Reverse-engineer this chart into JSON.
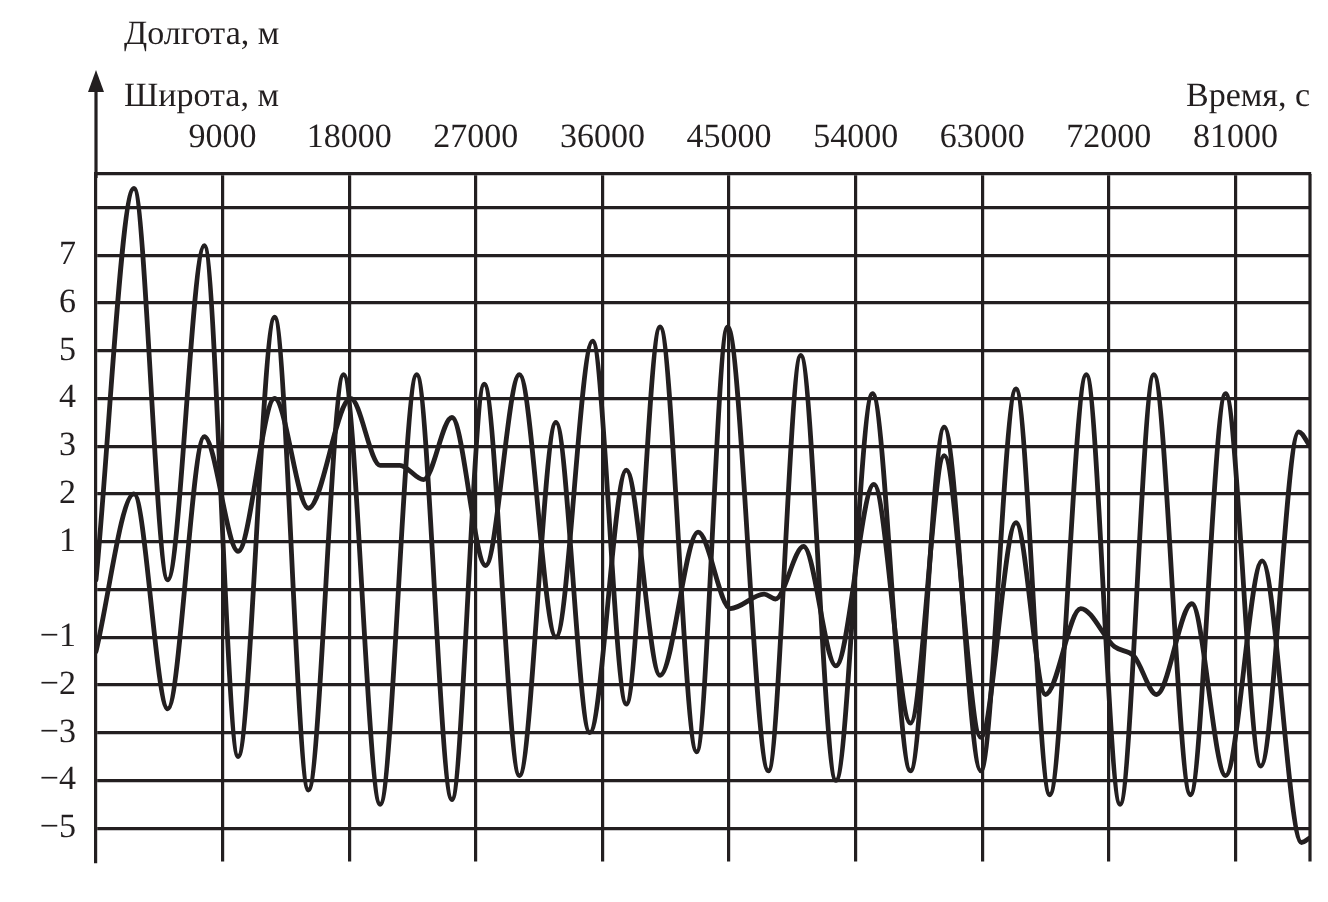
{
  "chart_data": {
    "type": "line",
    "xlabel": "Время, с",
    "ylabel": "Долгота, м\nШирота, м",
    "xlim": [
      0,
      86300
    ],
    "xticks": [
      9000,
      18000,
      27000,
      36000,
      45000,
      54000,
      63000,
      72000,
      81000
    ],
    "ylim": [
      -5.7,
      8.7
    ],
    "yticks": [
      {
        "value": 8,
        "label": null
      },
      7,
      6,
      5,
      4,
      3,
      2,
      1,
      {
        "value": 0,
        "label": null
      },
      -1,
      -2,
      -3,
      -4,
      -5
    ],
    "grid": true,
    "legend": false,
    "marker": "none",
    "line_style": "solid",
    "series": [
      {
        "color": "#231f20",
        "x": [
          0,
          2700,
          5100,
          7700,
          10100,
          12700,
          15100,
          17600,
          20200,
          22800,
          25300,
          27600,
          30100,
          32700,
          35100,
          37700,
          40100,
          42800,
          45100,
          47500,
          48300,
          50300,
          52600,
          55300,
          57900,
          60300,
          62900,
          65400,
          67500,
          70000,
          72400,
          73800,
          75400,
          77900,
          80300,
          82900,
          85700,
          86300
        ],
        "values": [
          0.2,
          8.4,
          0.2,
          7.2,
          -3.5,
          5.7,
          -4.2,
          4.5,
          -4.5,
          4.5,
          -4.4,
          4.3,
          -3.9,
          3.5,
          -3.0,
          2.5,
          -1.8,
          1.2,
          -0.4,
          -0.1,
          -0.2,
          0.9,
          -1.6,
          2.2,
          -2.8,
          2.8,
          -3.1,
          1.4,
          -2.2,
          -0.4,
          -1.2,
          -1.4,
          -2.2,
          -0.3,
          -3.9,
          0.6,
          -5.3,
          -5.2
        ]
      },
      {
        "color": "#231f20",
        "x": [
          0,
          2700,
          5100,
          7700,
          10100,
          12700,
          15100,
          18100,
          20200,
          21600,
          23300,
          25300,
          27700,
          30100,
          32700,
          35300,
          37700,
          40100,
          42700,
          44900,
          47800,
          50100,
          52600,
          55200,
          57900,
          60300,
          62900,
          65400,
          67800,
          70400,
          72800,
          75200,
          77800,
          80300,
          82800,
          85500,
          86300
        ],
        "values": [
          -1.3,
          2.0,
          -2.5,
          3.2,
          0.8,
          4.0,
          1.7,
          4.0,
          2.6,
          2.6,
          2.3,
          3.6,
          0.5,
          4.5,
          -1.0,
          5.2,
          -2.4,
          5.5,
          -3.4,
          5.5,
          -3.8,
          4.9,
          -4.0,
          4.1,
          -3.8,
          3.4,
          -3.8,
          4.2,
          -4.3,
          4.5,
          -4.5,
          4.5,
          -4.3,
          4.1,
          -3.7,
          3.3,
          3.0
        ]
      }
    ]
  }
}
